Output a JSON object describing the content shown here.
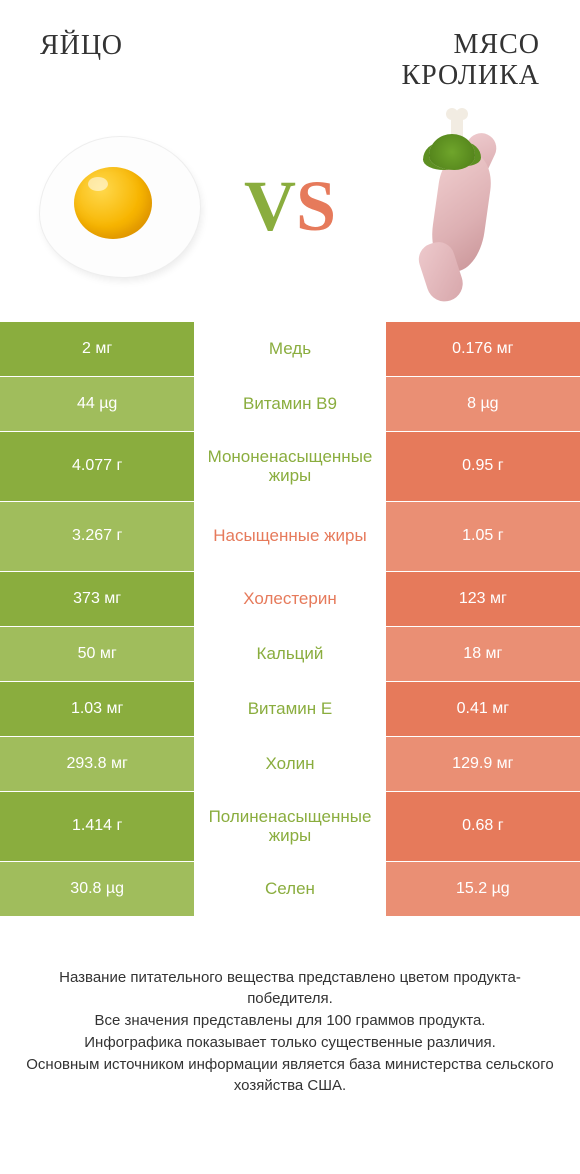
{
  "colors": {
    "green": "#8aad3e",
    "green_light": "#a0bd5c",
    "orange": "#e67a5b",
    "orange_light": "#ea8f74",
    "text": "#333333",
    "bg": "#ffffff"
  },
  "header": {
    "left_title": "ЯЙЦО",
    "right_title": "МЯСО\nКРОЛИКА",
    "vs_v": "V",
    "vs_s": "S"
  },
  "rows": [
    {
      "left": "2 мг",
      "label": "Медь",
      "right": "0.176 мг",
      "winner": "green",
      "tall": false
    },
    {
      "left": "44 µg",
      "label": "Витамин B9",
      "right": "8 µg",
      "winner": "green",
      "tall": false
    },
    {
      "left": "4.077 г",
      "label": "Мононенасыщенные жиры",
      "right": "0.95 г",
      "winner": "green",
      "tall": true
    },
    {
      "left": "3.267 г",
      "label": "Насыщенные жиры",
      "right": "1.05 г",
      "winner": "orange",
      "tall": true
    },
    {
      "left": "373 мг",
      "label": "Холестерин",
      "right": "123 мг",
      "winner": "orange",
      "tall": false
    },
    {
      "left": "50 мг",
      "label": "Кальций",
      "right": "18 мг",
      "winner": "green",
      "tall": false
    },
    {
      "left": "1.03 мг",
      "label": "Витамин E",
      "right": "0.41 мг",
      "winner": "green",
      "tall": false
    },
    {
      "left": "293.8 мг",
      "label": "Холин",
      "right": "129.9 мг",
      "winner": "green",
      "tall": false
    },
    {
      "left": "1.414 г",
      "label": "Полиненасыщенные жиры",
      "right": "0.68 г",
      "winner": "green",
      "tall": true
    },
    {
      "left": "30.8 µg",
      "label": "Селен",
      "right": "15.2 µg",
      "winner": "green",
      "tall": false
    }
  ],
  "footer": {
    "line1": "Название питательного вещества представлено цветом продукта-победителя.",
    "line2": "Все значения представлены для 100 граммов продукта.",
    "line3": "Инфографика показывает только существенные различия.",
    "line4": "Основным источником информации является база министерства сельского хозяйства США."
  }
}
